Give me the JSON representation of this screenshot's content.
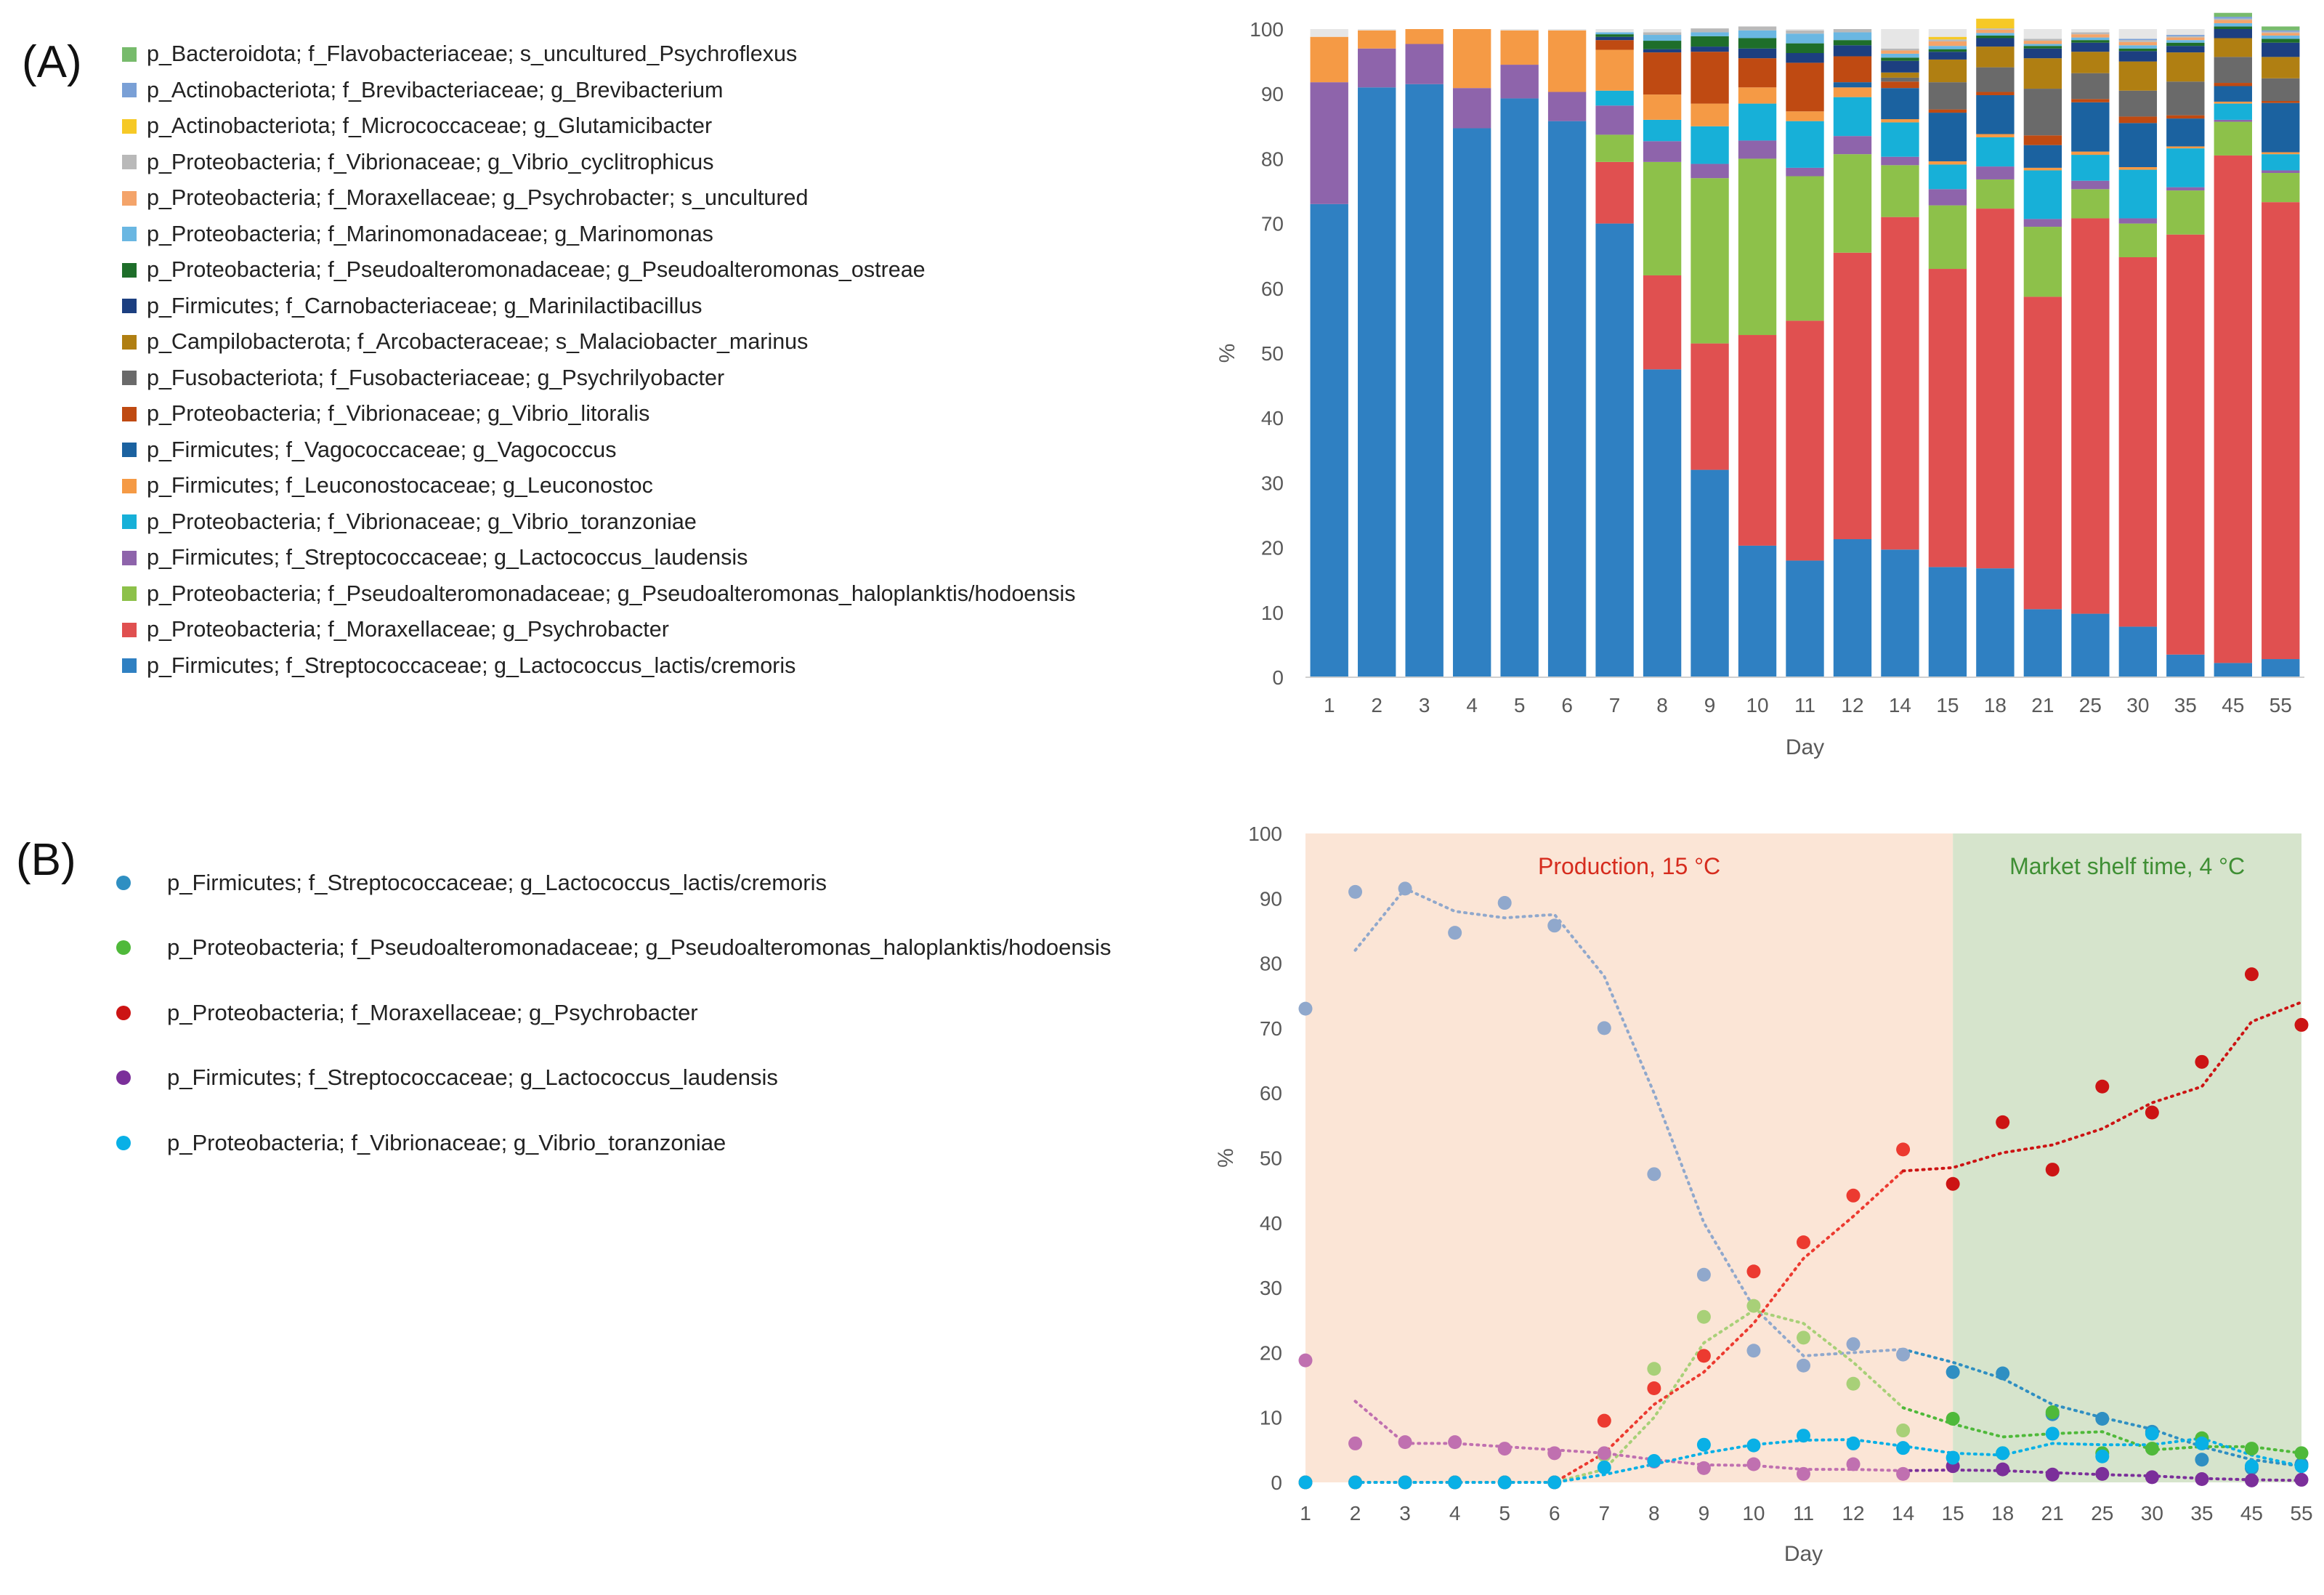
{
  "panel_labels": {
    "a": "(A)",
    "b": "(B)"
  },
  "chart_data": [
    {
      "type": "bar",
      "stacked": true,
      "panel": "(A)",
      "xlabel": "Day",
      "ylabel": "%",
      "ylim": [
        0,
        100
      ],
      "yticks": [
        0,
        10,
        20,
        30,
        40,
        50,
        60,
        70,
        80,
        90,
        100
      ],
      "categories": [
        "1",
        "2",
        "3",
        "4",
        "5",
        "6",
        "7",
        "8",
        "9",
        "10",
        "11",
        "12",
        "14",
        "15",
        "18",
        "21",
        "25",
        "30",
        "35",
        "45",
        "55"
      ],
      "series": [
        {
          "name": "p_Firmicutes; f_Streptococcaceae; g_Lactococcus_lactis/cremoris",
          "color": "#2f80c2",
          "values": [
            73,
            91,
            91.5,
            84.7,
            89.3,
            85.8,
            70,
            47.5,
            32,
            20.3,
            18,
            21.3,
            19.7,
            17,
            16.8,
            10.5,
            9.8,
            7.8,
            3.5,
            2.2,
            2.8
          ]
        },
        {
          "name": "p_Proteobacteria; f_Moraxellaceae; g_Psychrobacter",
          "color": "#e05050",
          "values": [
            0,
            0,
            0,
            0,
            0,
            0,
            9.5,
            14.5,
            19.5,
            32.5,
            37,
            44.2,
            51.3,
            46,
            55.5,
            48.2,
            61,
            57,
            64.8,
            78.3,
            70.5
          ]
        },
        {
          "name": "p_Proteobacteria; f_Pseudoalteromonadaceae; g_Pseudoalteromonas_haloplanktis/hodoensis",
          "color": "#8dc14a",
          "values": [
            0,
            0,
            0,
            0,
            0,
            0,
            4.2,
            17.5,
            25.5,
            27.2,
            22.3,
            15.2,
            8,
            9.8,
            4.5,
            10.8,
            4.5,
            5.2,
            6.8,
            5.2,
            4.5
          ]
        },
        {
          "name": "p_Firmicutes; f_Streptococcaceae; g_Lactococcus_laudensis",
          "color": "#8e64ab",
          "values": [
            18.8,
            6,
            6.2,
            6.2,
            5.2,
            4.5,
            4.5,
            3.2,
            2.2,
            2.8,
            1.3,
            2.8,
            1.3,
            2.5,
            2,
            1.2,
            1.3,
            0.8,
            0.5,
            0.3,
            0.4
          ]
        },
        {
          "name": "p_Proteobacteria; f_Vibrionaceae; g_Vibrio_toranzoniae",
          "color": "#17b0d8",
          "values": [
            0,
            0,
            0,
            0,
            0,
            0,
            2.3,
            3.3,
            5.8,
            5.7,
            7.2,
            6,
            5.3,
            3.8,
            4.5,
            7.5,
            4,
            7.5,
            6,
            2.5,
            2.5
          ]
        },
        {
          "name": "p_Firmicutes; f_Leuconostocaceae; g_Leuconostoc",
          "color": "#f59a45",
          "values": [
            7,
            2.8,
            2.3,
            9.1,
            5.3,
            9.5,
            6.3,
            3.9,
            3.5,
            2.5,
            1.5,
            1.5,
            0.5,
            0.5,
            0.5,
            0.4,
            0.5,
            0.4,
            0.3,
            0.3,
            0.3
          ]
        },
        {
          "name": "p_Firmicutes; f_Vagococcaceae; g_Vagococcus",
          "color": "#1b62a0",
          "values": [
            0,
            0,
            0,
            0,
            0,
            0,
            0,
            0,
            0,
            0,
            0,
            0.8,
            4.8,
            7.5,
            6,
            3.5,
            7.6,
            6.8,
            4.3,
            2.4,
            7.6
          ]
        },
        {
          "name": "p_Proteobacteria; f_Vibrionaceae; g_Vibrio_litoralis",
          "color": "#bf4a12",
          "values": [
            0,
            0,
            0,
            0,
            0,
            0,
            1.5,
            6.5,
            8,
            4.5,
            7.5,
            4,
            1,
            0.5,
            0.5,
            1.5,
            0.5,
            1,
            0.5,
            0.5,
            0.3
          ]
        },
        {
          "name": "p_Fusobacteriota; f_Fusobacteriaceae; g_Psychrilyobacter",
          "color": "#6a6a6a",
          "values": [
            0,
            0,
            0,
            0,
            0,
            0,
            0,
            0,
            0,
            0,
            0,
            0,
            0.6,
            4.2,
            3.8,
            7.2,
            4,
            4,
            5.2,
            4,
            3.5
          ]
        },
        {
          "name": "p_Campilobacterota; f_Arcobacteraceae; s_Malaciobacter_marinus",
          "color": "#b07f12",
          "values": [
            0,
            0,
            0,
            0,
            0,
            0,
            0,
            0,
            0,
            0,
            0,
            0,
            0.8,
            3.5,
            3.2,
            4.7,
            3.3,
            4.5,
            4.5,
            2.9,
            3.3
          ]
        },
        {
          "name": "p_Firmicutes; f_Carnobacteriaceae; g_Marinilactibacillus",
          "color": "#1c3f80",
          "values": [
            0,
            0,
            0,
            0,
            0,
            0,
            0.5,
            0.5,
            0.8,
            1.5,
            1.5,
            1.7,
            1.8,
            1.2,
            1.3,
            1.5,
            1.4,
            1.6,
            1,
            1.4,
            2.2
          ]
        },
        {
          "name": "p_Proteobacteria; f_Pseudoalteromonadaceae; g_Pseudoalteromonas_ostreae",
          "color": "#1e6e2a",
          "values": [
            0,
            0,
            0,
            0,
            0,
            0,
            0.4,
            1.3,
            1.6,
            1.6,
            1.5,
            0.8,
            0.5,
            0.4,
            0.4,
            0.4,
            0.4,
            0.4,
            0.5,
            0.4,
            0.6
          ]
        },
        {
          "name": "p_Proteobacteria; f_Marinomonadaceae; g_Marinomonas",
          "color": "#6ab7e2",
          "values": [
            0,
            0,
            0,
            0,
            0,
            0,
            0.3,
            0.9,
            0.6,
            1.2,
            1.5,
            1.2,
            0.6,
            0.5,
            0.4,
            0.3,
            0.4,
            0.5,
            0.4,
            0.5,
            0.5
          ]
        },
        {
          "name": "p_Proteobacteria; f_Moraxellaceae; g_Psychrobacter; s_uncultured",
          "color": "#f4a46a",
          "values": [
            0,
            0,
            0,
            0,
            0,
            0,
            0,
            0,
            0,
            0,
            0,
            0,
            0.5,
            0.7,
            0.5,
            0.5,
            0.5,
            0.5,
            0.4,
            0.5,
            0.4
          ]
        },
        {
          "name": "p_Proteobacteria; f_Vibrionaceae; g_Vibrio_cyclitrophicus",
          "color": "#b9b9b9",
          "values": [
            0,
            0,
            0,
            0,
            0,
            0,
            0,
            0.4,
            0.6,
            0.6,
            0.5,
            0.5,
            0.3,
            0.3,
            0.2,
            0.3,
            0.3,
            0.3,
            0.2,
            0.2,
            0.2
          ]
        },
        {
          "name": "p_Actinobacteriota; f_Micrococcaceae; g_Glutamicibacter",
          "color": "#f6c926",
          "values": [
            0,
            0,
            0,
            0,
            0,
            0,
            0,
            0,
            0,
            0,
            0,
            0,
            0,
            0.4,
            1.5,
            0,
            0,
            0,
            0,
            0,
            0
          ]
        },
        {
          "name": "p_Actinobacteriota; f_Brevibacteriaceae; g_Brevibacterium",
          "color": "#7aa0d6",
          "values": [
            0,
            0,
            0,
            0,
            0,
            0,
            0,
            0,
            0,
            0,
            0,
            0,
            0,
            0,
            0,
            0,
            0,
            0.2,
            0.2,
            0.3,
            0.2
          ]
        },
        {
          "name": "p_Bacteroidota; f_Flavobacteriaceae; s_uncultured_Psychroflexus",
          "color": "#77bb6c",
          "values": [
            0,
            0,
            0,
            0,
            0,
            0,
            0,
            0,
            0,
            0,
            0,
            0,
            0,
            0,
            0,
            0,
            0,
            0,
            0,
            0.6,
            0.6
          ]
        }
      ]
    },
    {
      "type": "scatter",
      "panel": "(B)",
      "xlabel": "Day",
      "ylabel": "%",
      "ylim": [
        0,
        100
      ],
      "yticks": [
        0,
        10,
        20,
        30,
        40,
        50,
        60,
        70,
        80,
        90,
        100
      ],
      "categories": [
        "1",
        "2",
        "3",
        "4",
        "5",
        "6",
        "7",
        "8",
        "9",
        "10",
        "11",
        "12",
        "14",
        "15",
        "18",
        "21",
        "25",
        "30",
        "35",
        "45",
        "55"
      ],
      "split_after_category": "14",
      "regions": [
        {
          "label": "Production, 15 °C",
          "color": "#fbe5d6",
          "label_color": "#d62c1e"
        },
        {
          "label": "Market shelf time, 4 °C",
          "color": "#d6e4cc",
          "label_color": "#3f8f34"
        }
      ],
      "series": [
        {
          "name": "p_Firmicutes; f_Streptococcaceae; g_Lactococcus_lactis/cremoris",
          "color": "#2f8fc2",
          "color_light": "#90a8cc",
          "values": [
            73,
            91,
            91.5,
            84.7,
            89.3,
            85.8,
            70,
            47.5,
            32,
            20.3,
            18,
            21.3,
            19.7,
            17,
            16.8,
            10.5,
            9.8,
            7.8,
            3.5,
            2.2,
            2.8
          ],
          "trend": [
            null,
            82,
            91.5,
            88,
            87,
            87.5,
            78,
            60,
            40,
            27,
            19.5,
            20,
            20.5,
            18.5,
            16,
            12,
            10,
            8.2,
            5.5,
            3.5,
            2.5
          ]
        },
        {
          "name": "p_Proteobacteria; f_Pseudoalteromonadaceae; g_Pseudoalteromonas_haloplanktis/hodoensis",
          "color": "#4fb93a",
          "color_light": "#a8d078",
          "values": [
            0,
            0,
            0,
            0,
            0,
            0,
            4.2,
            17.5,
            25.5,
            27.2,
            22.3,
            15.2,
            8,
            9.8,
            4.5,
            10.8,
            4.5,
            5.2,
            6.8,
            5.2,
            4.5
          ],
          "trend": [
            null,
            0,
            0,
            0,
            0,
            0,
            2,
            10,
            21.5,
            26.5,
            24.5,
            18.5,
            11.5,
            9,
            7,
            7.5,
            7.8,
            5,
            5.5,
            5.5,
            4.5
          ]
        },
        {
          "name": "p_Proteobacteria; f_Moraxellaceae; g_Psychrobacter",
          "color": "#cc1414",
          "color_light": "#ec3a30",
          "values": [
            0,
            0,
            0,
            0,
            0,
            0,
            9.5,
            14.5,
            19.5,
            32.5,
            37,
            44.2,
            51.3,
            46,
            55.5,
            48.2,
            61,
            57,
            64.8,
            78.3,
            70.5
          ],
          "trend": [
            null,
            0,
            0,
            0,
            0,
            0,
            4.5,
            12,
            17,
            24.5,
            34.5,
            41,
            48,
            48.5,
            50.8,
            52,
            54.5,
            58.5,
            61,
            71,
            74
          ]
        },
        {
          "name": "p_Firmicutes; f_Streptococcaceae; g_Lactococcus_laudensis",
          "color": "#7b2f9a",
          "color_light": "#c070b0",
          "values": [
            18.8,
            6,
            6.2,
            6.2,
            5.2,
            4.5,
            4.5,
            3.2,
            2.2,
            2.8,
            1.3,
            2.8,
            1.3,
            2.5,
            2,
            1.2,
            1.3,
            0.8,
            0.5,
            0.3,
            0.4
          ],
          "trend": [
            null,
            12.5,
            6,
            6,
            5.5,
            5,
            4.5,
            3.5,
            2.7,
            2.6,
            2,
            2,
            1.8,
            1.9,
            1.8,
            1.5,
            1.2,
            1,
            0.6,
            0.4,
            0.3
          ]
        },
        {
          "name": "p_Proteobacteria; f_Vibrionaceae; g_Vibrio_toranzoniae",
          "color": "#09b0e6",
          "color_light": "#09b0e6",
          "values": [
            0,
            0,
            0,
            0,
            0,
            0,
            2.3,
            3.3,
            5.8,
            5.7,
            7.2,
            6,
            5.3,
            3.8,
            4.5,
            7.5,
            4,
            7.5,
            6,
            2.5,
            2.5
          ],
          "trend": [
            null,
            0,
            0,
            0,
            0,
            0,
            1.2,
            2.8,
            4.5,
            5.8,
            6.5,
            6.6,
            5.6,
            4.5,
            4.2,
            6,
            5.8,
            5.8,
            6.8,
            4.2,
            2.5
          ]
        }
      ]
    }
  ]
}
